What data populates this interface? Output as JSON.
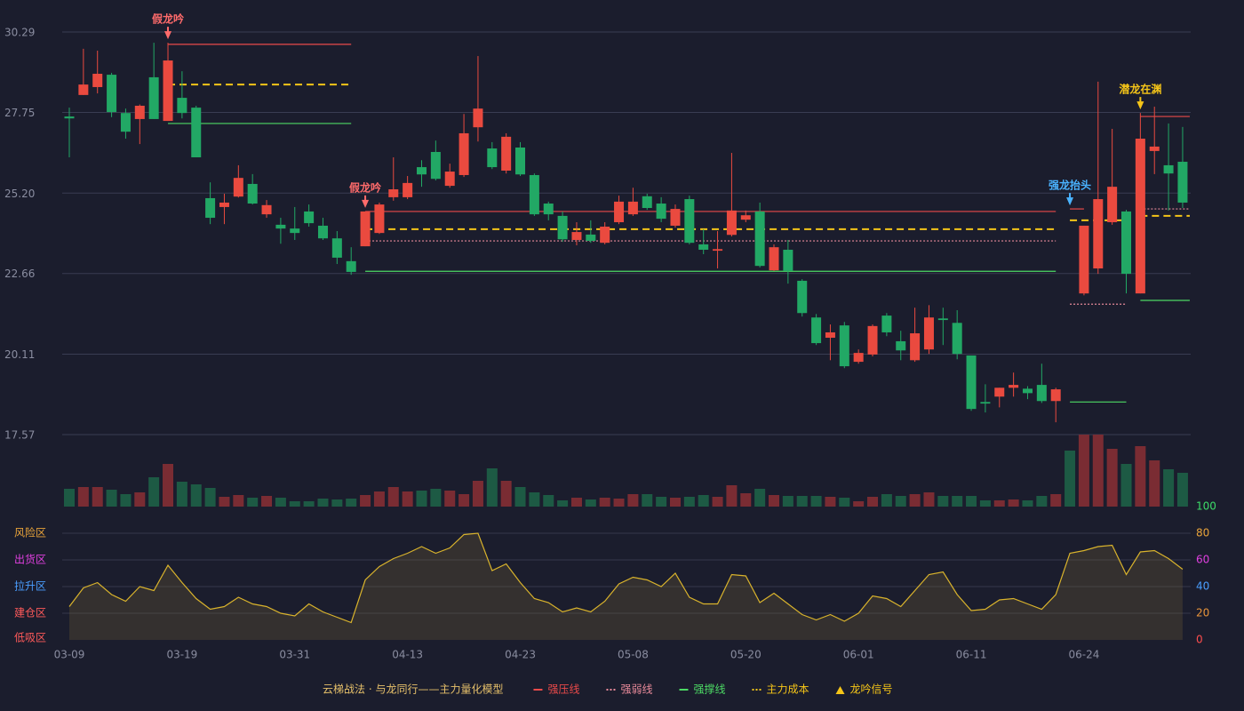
{
  "chart_data": {
    "type": "candlestick",
    "categories": [
      "03-09",
      null,
      null,
      null,
      null,
      null,
      null,
      null,
      "03-19",
      null,
      null,
      null,
      null,
      null,
      null,
      null,
      "03-31",
      null,
      null,
      null,
      null,
      null,
      null,
      null,
      "04-13",
      null,
      null,
      null,
      null,
      null,
      null,
      null,
      "04-23",
      null,
      null,
      null,
      null,
      null,
      null,
      null,
      "05-08",
      null,
      null,
      null,
      null,
      null,
      null,
      null,
      "05-20",
      null,
      null,
      null,
      null,
      null,
      null,
      null,
      "06-01",
      null,
      null,
      null,
      null,
      null,
      null,
      null,
      "06-11",
      null,
      null,
      null,
      null,
      null,
      null,
      null,
      "06-24",
      null,
      null,
      null,
      null,
      null,
      null,
      null
    ],
    "open": [
      27.62,
      28.3,
      28.55,
      28.94,
      27.73,
      27.54,
      28.86,
      27.48,
      28.21,
      27.9,
      25.04,
      24.76,
      25.09,
      25.49,
      24.53,
      24.2,
      24.08,
      24.62,
      24.17,
      23.77,
      23.05,
      23.52,
      23.94,
      25.07,
      25.07,
      26.02,
      26.5,
      25.43,
      25.77,
      27.28,
      26.61,
      25.91,
      26.64,
      25.77,
      24.87,
      24.48,
      23.72,
      23.89,
      23.63,
      24.28,
      24.53,
      25.1,
      24.87,
      24.17,
      25.01,
      23.58,
      23.38,
      23.88,
      24.36,
      24.62,
      22.76,
      23.41,
      22.43,
      21.27,
      20.63,
      21.02,
      19.87,
      20.1,
      21.33,
      20.52,
      19.92,
      20.26,
      21.24,
      21.1,
      20.07,
      18.6,
      18.77,
      19.05,
      19.02,
      19.14,
      18.63,
      null,
      22.03,
      22.82,
      24.28,
      24.62,
      22.03,
      26.53,
      26.08,
      26.19
    ],
    "high": [
      27.9,
      29.76,
      29.7,
      29.0,
      27.87,
      28.0,
      29.95,
      29.95,
      29.05,
      27.96,
      25.54,
      25.18,
      26.08,
      25.8,
      24.98,
      24.42,
      24.76,
      24.84,
      24.42,
      24.0,
      23.49,
      24.62,
      24.9,
      26.33,
      25.74,
      26.24,
      26.86,
      26.13,
      27.7,
      29.53,
      26.81,
      27.09,
      26.81,
      25.82,
      24.93,
      24.62,
      24.28,
      24.34,
      24.28,
      25.12,
      25.37,
      25.18,
      25.07,
      24.84,
      25.12,
      24.06,
      24.0,
      26.47,
      24.65,
      24.9,
      23.58,
      23.72,
      22.48,
      21.38,
      21.05,
      21.13,
      20.26,
      21.05,
      21.41,
      20.85,
      21.58,
      21.66,
      21.58,
      21.5,
      20.07,
      19.16,
      19.05,
      19.53,
      19.1,
      19.81,
      19.05,
      null,
      24.17,
      28.72,
      27.23,
      24.67,
      27.73,
      27.93,
      27.4,
      27.29
    ],
    "low": [
      26.33,
      28.3,
      28.35,
      27.6,
      26.92,
      26.75,
      27.54,
      27.48,
      27.56,
      26.33,
      24.22,
      24.22,
      25.06,
      24.84,
      24.42,
      23.6,
      23.72,
      24.14,
      23.72,
      22.96,
      22.62,
      23.52,
      23.91,
      24.96,
      25.01,
      25.4,
      25.6,
      25.37,
      25.71,
      26.83,
      25.96,
      25.82,
      25.74,
      24.48,
      24.34,
      23.66,
      23.55,
      23.63,
      23.58,
      24.22,
      24.48,
      24.67,
      24.28,
      24.11,
      23.58,
      23.27,
      22.82,
      23.83,
      24.28,
      22.85,
      22.74,
      22.34,
      21.3,
      20.4,
      19.92,
      19.67,
      19.81,
      20.04,
      20.68,
      19.92,
      19.87,
      20.12,
      20.4,
      19.95,
      18.32,
      18.27,
      18.43,
      18.77,
      18.69,
      18.57,
      17.96,
      null,
      21.97,
      22.65,
      24.2,
      22.03,
      22.03,
      25.8,
      24.65,
      24.73
    ],
    "close": [
      27.56,
      28.63,
      28.97,
      27.76,
      27.14,
      27.96,
      27.54,
      29.39,
      27.73,
      26.33,
      24.42,
      24.9,
      25.68,
      24.87,
      24.82,
      24.08,
      23.94,
      24.25,
      23.77,
      23.16,
      22.71,
      24.62,
      24.84,
      25.32,
      25.52,
      25.79,
      25.65,
      25.88,
      27.09,
      27.87,
      26.02,
      26.98,
      25.79,
      24.53,
      24.53,
      23.74,
      23.97,
      23.69,
      24.14,
      24.93,
      24.93,
      24.73,
      24.39,
      24.7,
      23.63,
      23.41,
      23.43,
      24.65,
      24.5,
      22.9,
      23.49,
      22.74,
      21.41,
      20.46,
      20.8,
      19.73,
      20.15,
      21.0,
      20.8,
      20.23,
      20.77,
      21.27,
      21.19,
      20.12,
      18.38,
      18.55,
      19.05,
      19.14,
      18.88,
      18.63,
      19.0,
      null,
      24.17,
      25.01,
      25.4,
      22.65,
      26.92,
      26.67,
      25.82,
      24.9
    ],
    "volume": [
      20,
      22,
      22,
      19,
      14,
      16,
      33,
      48,
      28,
      25,
      21,
      11,
      13,
      10,
      12,
      10,
      6,
      6,
      9,
      8,
      9,
      13,
      17,
      22,
      17,
      18,
      20,
      18,
      14,
      29,
      43,
      29,
      22,
      16,
      13,
      7,
      10,
      8,
      10,
      9,
      14,
      14,
      11,
      10,
      11,
      13,
      11,
      24,
      15,
      20,
      13,
      12,
      12,
      12,
      11,
      10,
      6,
      11,
      14,
      12,
      14,
      16,
      12,
      12,
      12,
      7,
      7,
      8,
      7,
      12,
      14,
      63,
      81,
      81,
      65,
      48,
      68,
      52,
      42,
      38
    ],
    "volume_ylim": [
      0,
      81
    ],
    "ylim": [
      17.57,
      30.29
    ],
    "yticks": [
      17.57,
      20.11,
      22.66,
      {
        "value": 25.2,
        "label": "25.20"
      },
      27.75,
      30.29
    ],
    "up_color": "#ea4a3f",
    "down_color": "#22a865",
    "up_volume_color": "#7a2c33",
    "down_volume_color": "#1d5a44",
    "grid": true,
    "indicator": {
      "values": [
        25,
        39,
        43,
        34,
        29,
        40,
        37,
        56,
        43,
        31,
        23,
        25,
        32,
        27,
        25,
        20,
        18,
        27,
        21,
        17,
        13,
        45,
        55,
        61,
        65,
        70,
        65,
        69,
        79,
        80,
        52,
        57,
        43,
        31,
        28,
        21,
        24,
        21,
        29,
        42,
        47,
        45,
        40,
        50,
        32,
        27,
        27,
        49,
        48,
        28,
        35,
        27,
        19,
        15,
        19,
        14,
        20,
        33,
        31,
        25,
        37,
        49,
        51,
        34,
        22,
        23,
        30,
        31,
        27,
        23,
        34,
        65,
        67,
        70,
        71,
        49,
        66,
        67,
        61,
        53
      ],
      "color": "#d9b32c",
      "ylim": [
        0,
        100
      ],
      "yticks": [
        0,
        20,
        40,
        60,
        80,
        100
      ],
      "tick_colors": [
        "#ff4d4d",
        "#e8943a",
        "#4a9eff",
        "#e040e0",
        "#e8a33a",
        "#3ddc68"
      ],
      "zones": [
        {
          "label": "风险区",
          "value": 80,
          "color": "#e8a33a"
        },
        {
          "label": "出货区",
          "value": 60,
          "color": "#e040e0"
        },
        {
          "label": "拉升区",
          "value": 40,
          "color": "#4a9eff"
        },
        {
          "label": "建仓区",
          "value": 20,
          "color": "#ff5a5a"
        },
        {
          "label": "低吸区",
          "value": 0,
          "color": "#ff5a5a"
        }
      ]
    },
    "levels": [
      {
        "name": "强压线",
        "color": "#ea4a4a",
        "style": "solid",
        "segments": [
          {
            "start": 7,
            "end": 20,
            "value": 29.9
          },
          {
            "start": 21,
            "end": 70,
            "value": 24.62
          },
          {
            "start": 71,
            "end": 72,
            "value": 24.7
          },
          {
            "start": 76,
            "end": 79,
            "value": 27.62
          }
        ]
      },
      {
        "name": "强弱线",
        "color": "#e88a9a",
        "style": "dotted",
        "segments": [
          {
            "start": 21,
            "end": 70,
            "value": 23.69
          },
          {
            "start": 71,
            "end": 75,
            "value": 21.69
          },
          {
            "start": 76,
            "end": 79,
            "value": 24.7
          }
        ]
      },
      {
        "name": "强撑线",
        "color": "#4cd964",
        "style": "solid",
        "segments": [
          {
            "start": 7,
            "end": 20,
            "value": 27.4
          },
          {
            "start": 21,
            "end": 70,
            "value": 22.73
          },
          {
            "start": 71,
            "end": 75,
            "value": 18.6
          },
          {
            "start": 76,
            "end": 79,
            "value": 21.81
          }
        ]
      },
      {
        "name": "主力成本",
        "color": "#f5c518",
        "style": "dashed",
        "segments": [
          {
            "start": 7,
            "end": 20,
            "value": 28.63
          },
          {
            "start": 21,
            "end": 70,
            "value": 24.06
          },
          {
            "start": 71,
            "end": 75,
            "value": 24.34
          },
          {
            "start": 76,
            "end": 79,
            "value": 24.48
          }
        ]
      }
    ],
    "signals": [
      {
        "index": 7,
        "label": "假龙吟",
        "color": "#ff6b6b"
      },
      {
        "index": 21,
        "label": "假龙吟",
        "color": "#ff6b6b"
      },
      {
        "index": 71,
        "label": "强龙抬头",
        "color": "#4ab3ff"
      },
      {
        "index": 76,
        "label": "潜龙在渊",
        "color": "#f5c518"
      }
    ],
    "legend_title": "云梯战法 · 与龙同行——主力量化模型",
    "signal_legend": {
      "label": "龙吟信号",
      "color": "#f5c518"
    }
  }
}
